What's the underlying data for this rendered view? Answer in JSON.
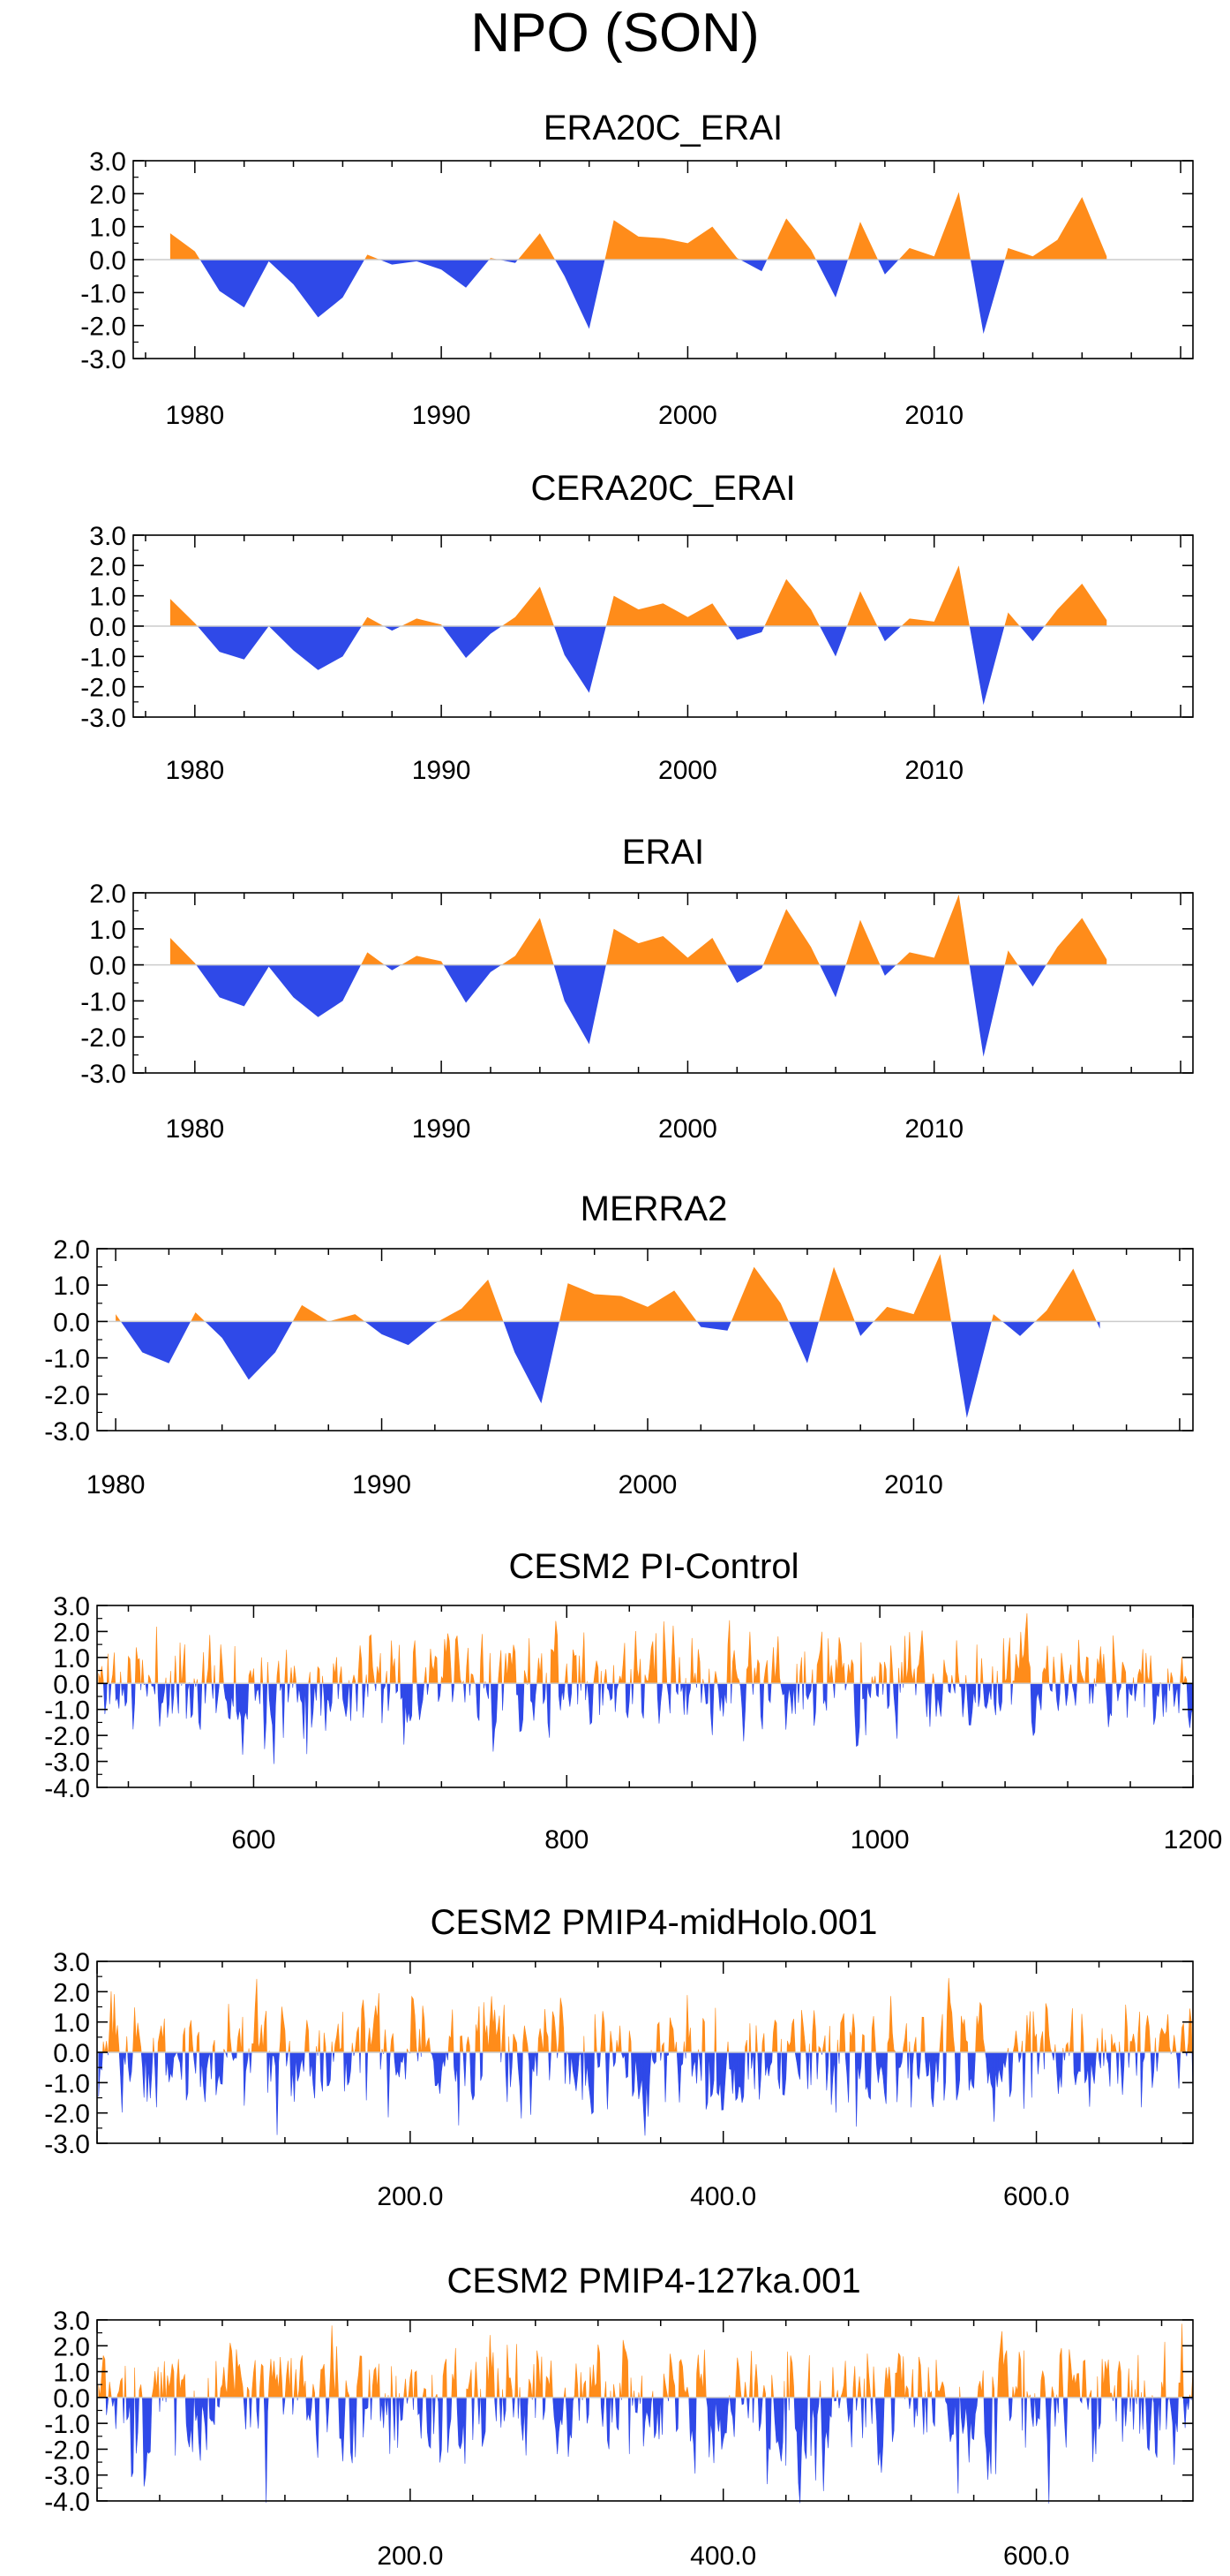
{
  "title": "NPO (SON)",
  "colors": {
    "positive": "#ff8c1a",
    "negative": "#2f49e8",
    "axis": "#000000",
    "zero_line": "#cccccc"
  },
  "chart_data": [
    {
      "type": "area",
      "title": "ERA20C_ERAI",
      "x": [
        1979,
        1980,
        1981,
        1982,
        1983,
        1984,
        1985,
        1986,
        1987,
        1988,
        1989,
        1990,
        1991,
        1992,
        1993,
        1994,
        1995,
        1996,
        1997,
        1998,
        1999,
        2000,
        2001,
        2002,
        2003,
        2004,
        2005,
        2006,
        2007,
        2008,
        2009,
        2010,
        2011,
        2012,
        2013,
        2014,
        2015,
        2016,
        2017
      ],
      "values": [
        0.8,
        0.25,
        -0.95,
        -1.45,
        -0.05,
        -0.75,
        -1.75,
        -1.15,
        0.15,
        -0.15,
        -0.05,
        -0.3,
        -0.85,
        0.05,
        -0.1,
        0.8,
        -0.5,
        -2.1,
        1.2,
        0.7,
        0.65,
        0.5,
        1.0,
        0.05,
        -0.35,
        1.25,
        0.3,
        -1.15,
        1.15,
        -0.45,
        0.35,
        0.1,
        2.05,
        -2.25,
        0.35,
        0.1,
        0.6,
        1.9,
        0.1
      ],
      "xlim": [
        1977.5,
        2020.5
      ],
      "ylim": [
        -3.0,
        3.0
      ],
      "xticks": [
        1980,
        1990,
        2000,
        2010
      ],
      "xtick_labels": [
        "1980",
        "1990",
        "2000",
        "2010"
      ],
      "yticks": [
        3.0,
        2.0,
        1.0,
        0.0,
        -1.0,
        -2.0,
        -3.0
      ],
      "ytick_labels": [
        "3.0",
        "2.0",
        "1.0",
        "0.0",
        "-1.0",
        "-2.0",
        "-3.0"
      ]
    },
    {
      "type": "area",
      "title": "CERA20C_ERAI",
      "x": [
        1979,
        1980,
        1981,
        1982,
        1983,
        1984,
        1985,
        1986,
        1987,
        1988,
        1989,
        1990,
        1991,
        1992,
        1993,
        1994,
        1995,
        1996,
        1997,
        1998,
        1999,
        2000,
        2001,
        2002,
        2003,
        2004,
        2005,
        2006,
        2007,
        2008,
        2009,
        2010,
        2011,
        2012,
        2013,
        2014,
        2015,
        2016,
        2017
      ],
      "values": [
        0.9,
        0.1,
        -0.85,
        -1.1,
        0.0,
        -0.8,
        -1.45,
        -1.0,
        0.3,
        -0.15,
        0.25,
        0.05,
        -1.05,
        -0.25,
        0.3,
        1.3,
        -0.95,
        -2.2,
        1.0,
        0.55,
        0.75,
        0.3,
        0.75,
        -0.45,
        -0.2,
        1.55,
        0.55,
        -1.0,
        1.15,
        -0.5,
        0.25,
        0.15,
        2.0,
        -2.6,
        0.45,
        -0.5,
        0.55,
        1.4,
        0.2
      ],
      "xlim": [
        1977.5,
        2020.5
      ],
      "ylim": [
        -3.0,
        3.0
      ],
      "xticks": [
        1980,
        1990,
        2000,
        2010
      ],
      "xtick_labels": [
        "1980",
        "1990",
        "2000",
        "2010"
      ],
      "yticks": [
        3.0,
        2.0,
        1.0,
        0.0,
        -1.0,
        -2.0,
        -3.0
      ],
      "ytick_labels": [
        "3.0",
        "2.0",
        "1.0",
        "0.0",
        "-1.0",
        "-2.0",
        "-3.0"
      ]
    },
    {
      "type": "area",
      "title": "ERAI",
      "x": [
        1979,
        1980,
        1981,
        1982,
        1983,
        1984,
        1985,
        1986,
        1987,
        1988,
        1989,
        1990,
        1991,
        1992,
        1993,
        1994,
        1995,
        1996,
        1997,
        1998,
        1999,
        2000,
        2001,
        2002,
        2003,
        2004,
        2005,
        2006,
        2007,
        2008,
        2009,
        2010,
        2011,
        2012,
        2013,
        2014,
        2015,
        2016,
        2017
      ],
      "values": [
        0.75,
        0.05,
        -0.9,
        -1.15,
        -0.05,
        -0.9,
        -1.45,
        -1.0,
        0.35,
        -0.15,
        0.25,
        0.1,
        -1.05,
        -0.2,
        0.25,
        1.3,
        -1.0,
        -2.2,
        1.0,
        0.6,
        0.8,
        0.2,
        0.75,
        -0.5,
        -0.1,
        1.55,
        0.5,
        -0.9,
        1.25,
        -0.3,
        0.35,
        0.2,
        1.95,
        -2.55,
        0.4,
        -0.6,
        0.5,
        1.3,
        0.15
      ],
      "xlim": [
        1977.5,
        2020.5
      ],
      "ylim": [
        -3.0,
        2.0
      ],
      "xticks": [
        1980,
        1990,
        2000,
        2010
      ],
      "xtick_labels": [
        "1980",
        "1990",
        "2000",
        "2010"
      ],
      "yticks": [
        2.0,
        1.0,
        0.0,
        -1.0,
        -2.0,
        -3.0
      ],
      "ytick_labels": [
        "2.0",
        "1.0",
        "0.0",
        "-1.0",
        "-2.0",
        "-3.0"
      ]
    },
    {
      "type": "area",
      "title": "MERRA2",
      "x": [
        1980,
        1981,
        1982,
        1983,
        1984,
        1985,
        1986,
        1987,
        1988,
        1989,
        1990,
        1991,
        1992,
        1993,
        1994,
        1995,
        1996,
        1997,
        1998,
        1999,
        2000,
        2001,
        2002,
        2003,
        2004,
        2005,
        2006,
        2007,
        2008,
        2009,
        2010,
        2011,
        2012,
        2013,
        2014,
        2015,
        2016,
        2017
      ],
      "values": [
        0.2,
        -0.85,
        -1.15,
        0.25,
        -0.45,
        -1.6,
        -0.85,
        0.45,
        0.0,
        0.2,
        -0.35,
        -0.65,
        -0.05,
        0.35,
        1.15,
        -0.85,
        -2.25,
        1.05,
        0.75,
        0.7,
        0.4,
        0.85,
        -0.15,
        -0.25,
        1.5,
        0.5,
        -1.15,
        1.5,
        -0.4,
        0.4,
        0.2,
        1.85,
        -2.65,
        0.2,
        -0.4,
        0.3,
        1.45,
        -0.2
      ],
      "xlim": [
        1979.3,
        2020.5
      ],
      "ylim": [
        -3.0,
        2.0
      ],
      "xticks": [
        1980,
        1990,
        2000,
        2010
      ],
      "xtick_labels": [
        "1980",
        "1990",
        "2000",
        "2010"
      ],
      "yticks": [
        2.0,
        1.0,
        0.0,
        -1.0,
        -2.0,
        -3.0
      ],
      "ytick_labels": [
        "2.0",
        "1.0",
        "0.0",
        "-1.0",
        "-2.0",
        "-3.0"
      ]
    },
    {
      "type": "area",
      "title": "CESM2 PI-Control",
      "x_start": 501,
      "x_end": 1200,
      "n": 700,
      "seed": 11,
      "sample_max": 2.7,
      "sample_min": -3.1,
      "xlim": [
        500,
        1200
      ],
      "ylim": [
        -4.0,
        3.0
      ],
      "xticks": [
        600,
        800,
        1000,
        1200
      ],
      "xtick_labels": [
        "600",
        "800",
        "1000",
        "1200"
      ],
      "yticks": [
        3.0,
        2.0,
        1.0,
        0.0,
        -1.0,
        -2.0,
        -3.0,
        -4.0
      ],
      "ytick_labels": [
        "3.0",
        "2.0",
        "1.0",
        "0.0",
        "-1.0",
        "-2.0",
        "-3.0",
        "-4.0"
      ]
    },
    {
      "type": "area",
      "title": "CESM2 PMIP4-midHolo.001",
      "x_start": 1,
      "x_end": 700,
      "n": 700,
      "seed": 23,
      "sample_max": 2.45,
      "sample_min": -2.75,
      "xlim": [
        0,
        700
      ],
      "ylim": [
        -3.0,
        3.0
      ],
      "xticks": [
        200,
        400,
        600
      ],
      "xtick_labels": [
        "200.0",
        "400.0",
        "600.0"
      ],
      "yticks": [
        3.0,
        2.0,
        1.0,
        0.0,
        -1.0,
        -2.0,
        -3.0
      ],
      "ytick_labels": [
        "3.0",
        "2.0",
        "1.0",
        "0.0",
        "-1.0",
        "-2.0",
        "-3.0"
      ]
    },
    {
      "type": "area",
      "title": "CESM2 PMIP4-127ka.001",
      "x_start": 1,
      "x_end": 700,
      "n": 700,
      "seed": 37,
      "sample_max": 2.85,
      "sample_min": -4.1,
      "xlim": [
        0,
        700
      ],
      "ylim": [
        -4.0,
        3.0
      ],
      "xticks": [
        200,
        400,
        600
      ],
      "xtick_labels": [
        "200.0",
        "400.0",
        "600.0"
      ],
      "yticks": [
        3.0,
        2.0,
        1.0,
        0.0,
        -1.0,
        -2.0,
        -3.0,
        -4.0
      ],
      "ytick_labels": [
        "3.0",
        "2.0",
        "1.0",
        "0.0",
        "-1.0",
        "-2.0",
        "-3.0",
        "-4.0"
      ]
    }
  ]
}
